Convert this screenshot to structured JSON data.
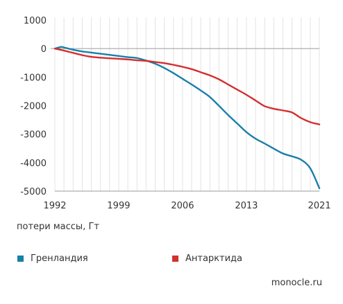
{
  "chart_data": {
    "type": "line",
    "ylabel": "потери массы, Гт",
    "xlim": [
      1992,
      2021
    ],
    "ylim": [
      -5000,
      1000
    ],
    "x_ticks": [
      1992,
      1999,
      2006,
      2013,
      2021
    ],
    "y_ticks": [
      1000,
      0,
      -1000,
      -2000,
      -3000,
      -4000,
      -5000
    ],
    "y_tick_labels": [
      "1000",
      "0",
      "-1000",
      "-2000",
      "-3000",
      "-4000",
      "-5000"
    ],
    "grid": "vertical",
    "series": [
      {
        "name": "Гренландия",
        "color": "#1a7fa8",
        "x": [
          1992,
          1992.7,
          1993,
          1994,
          1995,
          1996,
          1997,
          1998,
          1999,
          2000,
          2001,
          2002,
          2003,
          2004,
          2005,
          2006,
          2007,
          2008,
          2009,
          2010,
          2011,
          2012,
          2013,
          2014,
          2015,
          2016,
          2017,
          2018,
          2019,
          2020,
          2021
        ],
        "values": [
          0,
          60,
          40,
          -40,
          -100,
          -140,
          -180,
          -220,
          -260,
          -300,
          -330,
          -420,
          -530,
          -680,
          -860,
          -1060,
          -1260,
          -1470,
          -1700,
          -2010,
          -2330,
          -2630,
          -2930,
          -3160,
          -3330,
          -3510,
          -3680,
          -3780,
          -3900,
          -4200,
          -4900
        ]
      },
      {
        "name": "Антарктида",
        "color": "#d32f2f",
        "x": [
          1992,
          1993,
          1994,
          1995,
          1996,
          1997,
          1998,
          1999,
          2000,
          2001,
          2002,
          2003,
          2004,
          2005,
          2006,
          2007,
          2008,
          2009,
          2010,
          2011,
          2012,
          2013,
          2014,
          2015,
          2016,
          2017,
          2018,
          2019,
          2020,
          2021
        ],
        "values": [
          0,
          -70,
          -150,
          -230,
          -290,
          -320,
          -340,
          -360,
          -380,
          -410,
          -430,
          -470,
          -510,
          -570,
          -640,
          -720,
          -830,
          -940,
          -1080,
          -1260,
          -1440,
          -1620,
          -1820,
          -2020,
          -2110,
          -2170,
          -2240,
          -2440,
          -2580,
          -2660
        ]
      }
    ]
  },
  "legend": {
    "items": [
      {
        "label": "Гренландия",
        "color": "#1a7fa8"
      },
      {
        "label": "Антарктида",
        "color": "#d32f2f"
      }
    ]
  },
  "source": "monocle.ru"
}
